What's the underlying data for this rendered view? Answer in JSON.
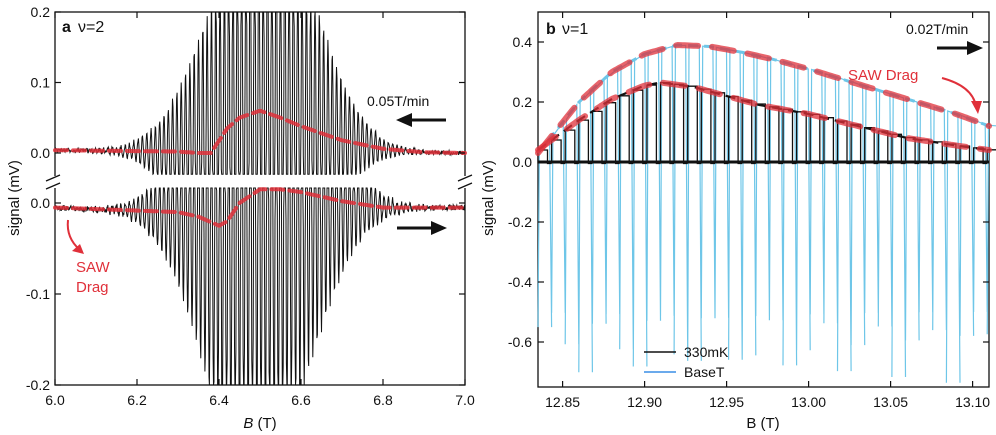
{
  "chart_data": [
    {
      "panel": "a",
      "title": "ν=2",
      "type": "line",
      "xlabel": "B (T)",
      "ylabel": "signal (mV)",
      "xlim": [
        6.0,
        7.0
      ],
      "xticks": [
        "6.0",
        "6.2",
        "6.4",
        "6.6",
        "6.8",
        "7.0"
      ],
      "yticks_upper": [
        "0.0",
        "0.1",
        "0.2"
      ],
      "yticks_lower": [
        "-0.2",
        "-0.1",
        "0.0"
      ],
      "sweeps": [
        {
          "direction": "down",
          "rate": "0.05T/min",
          "offset": 0.0,
          "drag_x": [
            6.0,
            6.3,
            6.35,
            6.38,
            6.42,
            6.45,
            6.5,
            6.55,
            6.6,
            6.7,
            6.8,
            6.9,
            7.0
          ],
          "drag_y": [
            0.004,
            0.002,
            0.0,
            0.0,
            0.035,
            0.05,
            0.06,
            0.05,
            0.038,
            0.018,
            0.006,
            0.001,
            0.0
          ]
        },
        {
          "direction": "up",
          "rate": "",
          "offset": 0.0,
          "drag_x": [
            6.0,
            6.3,
            6.35,
            6.4,
            6.42,
            6.45,
            6.5,
            6.55,
            6.6,
            6.7,
            6.8,
            6.9,
            7.0
          ],
          "drag_y": [
            -0.005,
            -0.01,
            -0.015,
            -0.025,
            -0.02,
            0.0,
            0.015,
            0.015,
            0.012,
            0.002,
            -0.005,
            -0.005,
            -0.005
          ]
        }
      ],
      "annotation": "SAW Drag",
      "annotation_line2": "Drag",
      "annotation_line1": "SAW",
      "arrow_upper_label": "0.05T/min"
    },
    {
      "panel": "b",
      "title": "ν=1",
      "type": "line",
      "xlabel": "B (T)",
      "ylabel": "signal (mV)",
      "xlim": [
        12.835,
        13.11
      ],
      "ylim": [
        -0.75,
        0.5
      ],
      "xticks": [
        "12.85",
        "12.90",
        "12.95",
        "13.00",
        "13.05",
        "13.10"
      ],
      "yticks": [
        "0.4",
        "0.2",
        "0.0",
        "-0.2",
        "-0.4",
        "-0.6"
      ],
      "rate": "0.02T/min",
      "annotation": "SAW Drag",
      "series": [
        {
          "name": "330mK",
          "color": "#111111",
          "x": [
            12.835,
            12.86,
            12.88,
            12.9,
            12.91,
            12.93,
            12.95,
            12.97,
            13.0,
            13.03,
            13.06,
            13.09,
            13.11
          ],
          "y": [
            0.04,
            0.14,
            0.21,
            0.255,
            0.265,
            0.25,
            0.22,
            0.19,
            0.16,
            0.12,
            0.08,
            0.055,
            0.04
          ]
        },
        {
          "name": "BaseT",
          "color": "#6ec6e8",
          "x": [
            12.835,
            12.86,
            12.88,
            12.9,
            12.92,
            12.94,
            12.96,
            12.98,
            13.0,
            13.03,
            13.06,
            13.09,
            13.11
          ],
          "y": [
            0.03,
            0.2,
            0.3,
            0.36,
            0.39,
            0.385,
            0.365,
            0.34,
            0.31,
            0.26,
            0.21,
            0.16,
            0.12
          ]
        }
      ],
      "legend": [
        "330mK",
        "BaseT"
      ]
    }
  ]
}
